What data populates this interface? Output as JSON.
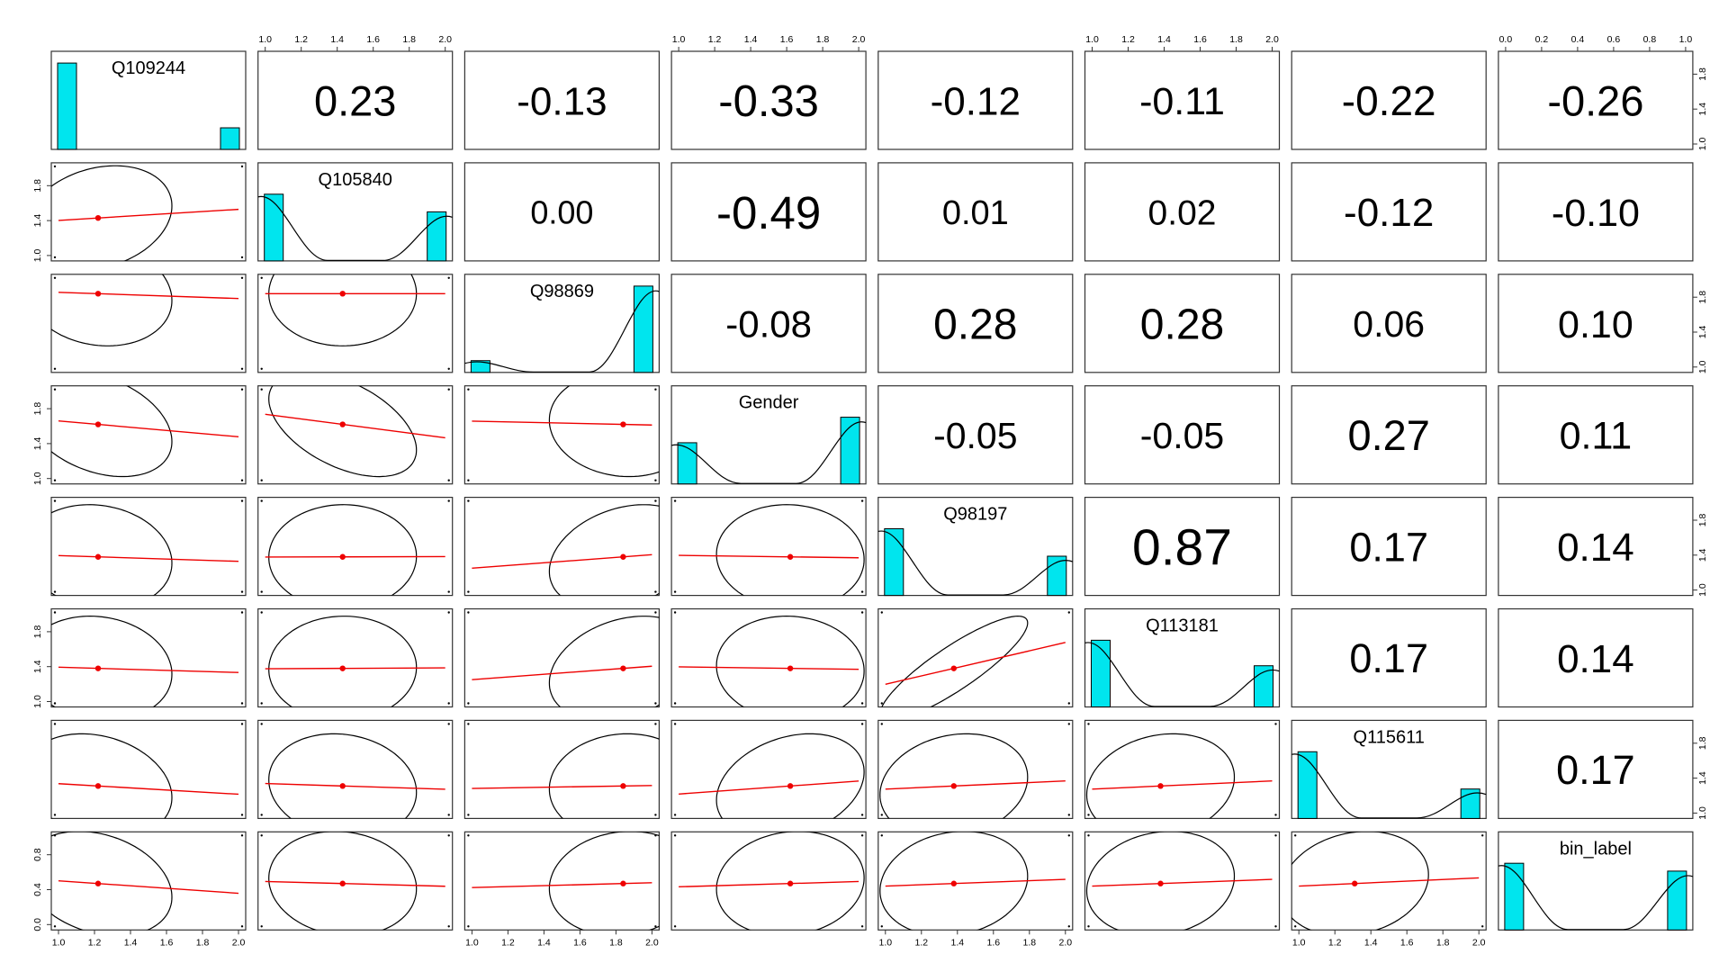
{
  "chart_data": {
    "type": "scatter",
    "variables": [
      "Q109244",
      "Q105840",
      "Q98869",
      "Gender",
      "Q98197",
      "Q113181",
      "Q115611",
      "bin_label"
    ],
    "means": [
      1.22,
      1.43,
      1.84,
      1.62,
      1.38,
      1.38,
      1.31,
      0.47
    ],
    "value_ranges": [
      [
        1,
        2
      ],
      [
        1,
        2
      ],
      [
        1,
        2
      ],
      [
        1,
        2
      ],
      [
        1,
        2
      ],
      [
        1,
        2
      ],
      [
        1,
        2
      ],
      [
        0,
        1
      ]
    ],
    "histograms": [
      [
        0.88,
        0.22
      ],
      [
        0.68,
        0.5
      ],
      [
        0.12,
        0.88
      ],
      [
        0.42,
        0.68
      ],
      [
        0.68,
        0.4
      ],
      [
        0.68,
        0.42
      ],
      [
        0.68,
        0.3
      ],
      [
        0.68,
        0.6
      ]
    ],
    "correlation_matrix": [
      [
        1,
        0.23,
        -0.13,
        -0.33,
        -0.12,
        -0.11,
        -0.22,
        -0.26
      ],
      [
        0.23,
        1,
        0.0,
        -0.49,
        0.01,
        0.02,
        -0.12,
        -0.1
      ],
      [
        -0.13,
        0.0,
        1,
        -0.08,
        0.28,
        0.28,
        0.06,
        0.1
      ],
      [
        -0.33,
        -0.49,
        -0.08,
        1,
        -0.05,
        -0.05,
        0.27,
        0.11
      ],
      [
        -0.12,
        0.01,
        0.28,
        -0.05,
        1,
        0.87,
        0.17,
        0.14
      ],
      [
        -0.11,
        0.02,
        0.28,
        -0.05,
        0.87,
        1,
        0.17,
        0.14
      ],
      [
        -0.22,
        -0.12,
        0.06,
        0.27,
        0.17,
        0.17,
        1,
        0.17
      ],
      [
        -0.26,
        -0.1,
        0.1,
        0.11,
        0.14,
        0.14,
        0.17,
        1
      ]
    ],
    "upper_labels": [
      [
        "0.23",
        "-0.13",
        "-0.33",
        "-0.12",
        "-0.11",
        "-0.22",
        "-0.26"
      ],
      [
        "0.00",
        "-0.49",
        "0.01",
        "0.02",
        "-0.12",
        "-0.10"
      ],
      [
        "-0.08",
        "0.28",
        "0.28",
        "0.06",
        "0.10"
      ],
      [
        "-0.05",
        "-0.05",
        "0.27",
        "0.11"
      ],
      [
        "0.87",
        "0.17",
        "0.14"
      ],
      [
        "0.17",
        "0.14"
      ],
      [
        "0.17"
      ]
    ],
    "x_ticks": {
      "standard": [
        "1.0",
        "1.2",
        "1.4",
        "1.6",
        "1.8",
        "2.0"
      ],
      "bin_label": [
        "0.0",
        "0.2",
        "0.4",
        "0.6",
        "0.8",
        "1.0"
      ]
    },
    "y_ticks": {
      "standard": [
        "1.0",
        "1.4",
        "1.8"
      ],
      "bin_label": [
        "0.0",
        "0.4",
        "0.8"
      ]
    },
    "colors": {
      "histogram_fill": "#00e5ee",
      "fit_line": "#ee0000",
      "center_point": "#ee0000",
      "ellipse": "#000000"
    }
  }
}
